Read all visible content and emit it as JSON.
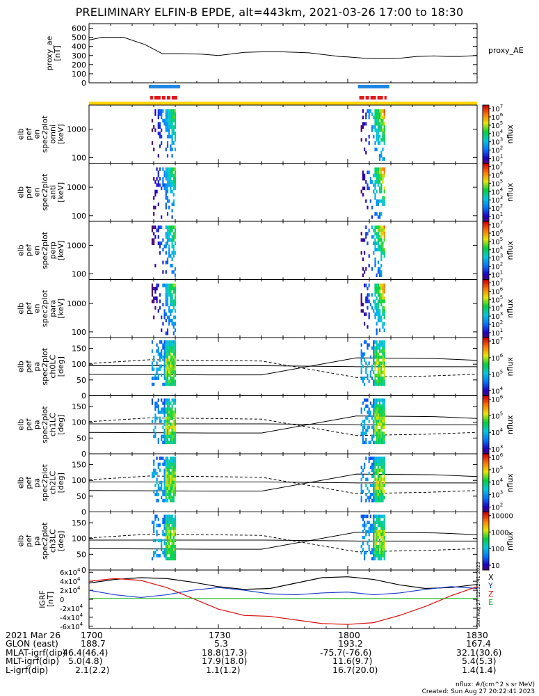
{
  "title": "PRELIMINARY ELFIN-B EPDE, alt=443km, 2021-03-26 17:00 to 18:30",
  "colors": {
    "blue_bar": "#1e88e5",
    "red_bar": "#e0181b",
    "yellow_bar": "#ffd400",
    "igrf_x": "#000000",
    "igrf_y": "#1a3ec8",
    "igrf_z": "#d81010",
    "igrf_e": "#22bb22"
  },
  "chart_data": [
    {
      "type": "line",
      "panel": "proxy_ae",
      "ylabel": [
        "proxy_ae",
        "[nT]"
      ],
      "legend": "proxy_AE",
      "ylim": [
        0,
        650
      ],
      "yticks": [
        "0",
        "100",
        "200",
        "300",
        "400",
        "500",
        "600"
      ],
      "x_minutes": [
        0,
        3,
        8,
        13,
        17,
        21,
        26,
        30,
        36,
        40,
        45,
        51,
        58,
        60,
        64,
        68,
        72,
        76,
        80,
        83,
        86,
        90
      ],
      "values": [
        470,
        500,
        500,
        420,
        320,
        320,
        315,
        300,
        335,
        340,
        340,
        330,
        290,
        285,
        270,
        265,
        270,
        290,
        295,
        290,
        290,
        300
      ]
    },
    {
      "type": "heatmap",
      "panels": [
        {
          "id": "omni",
          "ylabel": [
            "elb",
            "pef",
            "en",
            "spec2plot",
            "omni",
            "[keV]"
          ],
          "yticks": [
            "100",
            "1000"
          ]
        },
        {
          "id": "anti",
          "ylabel": [
            "elb",
            "pef",
            "en",
            "spec2plot",
            "anti",
            "[keV]"
          ],
          "yticks": [
            "100",
            "1000"
          ]
        },
        {
          "id": "perp",
          "ylabel": [
            "elb",
            "pef",
            "en",
            "spec2plot",
            "perp",
            "[keV]"
          ],
          "yticks": [
            "100",
            "1000"
          ]
        },
        {
          "id": "para",
          "ylabel": [
            "elb",
            "pef",
            "en",
            "spec2plot",
            "para",
            "[keV]"
          ],
          "yticks": [
            "100",
            "1000"
          ]
        },
        {
          "id": "ch0LC",
          "ylabel": [
            "elb",
            "pef",
            "pa",
            "spec2plot",
            "ch0LC",
            "[deg]"
          ],
          "yticks": [
            "0",
            "50",
            "100",
            "150"
          ]
        },
        {
          "id": "ch1LC",
          "ylabel": [
            "elb",
            "pef",
            "pa",
            "spec2plot",
            "ch1LC",
            "[deg]"
          ],
          "yticks": [
            "0",
            "50",
            "100",
            "150"
          ]
        },
        {
          "id": "ch2LC",
          "ylabel": [
            "elb",
            "pef",
            "pa",
            "spec2plot",
            "ch2LC",
            "[deg]"
          ],
          "yticks": [
            "0",
            "50",
            "100",
            "150"
          ]
        },
        {
          "id": "ch3LC",
          "ylabel": [
            "elb",
            "pef",
            "pa",
            "spec2plot",
            "ch3LC",
            "[deg]"
          ],
          "yticks": [
            "0",
            "50",
            "100",
            "150"
          ]
        }
      ],
      "colorbars": [
        {
          "labels": [
            "10^7",
            "10^6",
            "10^5",
            "10^4",
            "10^3",
            "10^2",
            "10^1"
          ],
          "unit": "nflux"
        },
        {
          "labels": [
            "10^7",
            "10^6",
            "10^5",
            "10^4",
            "10^3",
            "10^2",
            "10^1"
          ],
          "unit": "nflux"
        },
        {
          "labels": [
            "10^7",
            "10^6",
            "10^5",
            "10^4",
            "10^3",
            "10^2",
            "10^1"
          ],
          "unit": "nflux"
        },
        {
          "labels": [
            "10^7",
            "10^6",
            "10^5",
            "10^4",
            "10^3",
            "10^2",
            "10^1"
          ],
          "unit": "nflux"
        },
        {
          "labels": [
            "10^7",
            "10^6",
            "10^5",
            "10^4"
          ],
          "unit": "nflux"
        },
        {
          "labels": [
            "10^6",
            "10^5",
            "10^4",
            "10^3"
          ],
          "unit": "nflux"
        },
        {
          "labels": [
            "10^6",
            "10^5",
            "10^4",
            "10^3",
            "10^2"
          ],
          "unit": "nflux"
        },
        {
          "labels": [
            "10000",
            "1000",
            "100",
            "10"
          ],
          "unit": "nflux"
        }
      ],
      "science_intervals_minutes": [
        [
          14.5,
          20.5
        ],
        [
          63,
          69
        ]
      ]
    },
    {
      "type": "line",
      "panel": "igrf",
      "ylabel": [
        "IGRF",
        "[nT]"
      ],
      "ylim": [
        -65000,
        65000
      ],
      "yticks": [
        "-6x10^4",
        "-4x10^4",
        "-2x10^4",
        "0",
        "2x10^4",
        "4x10^4",
        "6x10^4"
      ],
      "legend": [
        "X",
        "Y",
        "Z",
        "E"
      ],
      "x_minutes": [
        0,
        6,
        12,
        18,
        24,
        30,
        36,
        42,
        48,
        54,
        60,
        66,
        72,
        78,
        84,
        90
      ],
      "series": [
        {
          "name": "X",
          "values": [
            36000,
            44000,
            48000,
            46000,
            38000,
            28000,
            22000,
            24000,
            36000,
            48000,
            50000,
            44000,
            32000,
            24000,
            26000,
            33000
          ]
        },
        {
          "name": "Y",
          "values": [
            20000,
            10000,
            4000,
            10000,
            20000,
            26000,
            20000,
            12000,
            10000,
            14000,
            16000,
            10000,
            14000,
            22000,
            28000,
            24000
          ]
        },
        {
          "name": "Z",
          "values": [
            40000,
            46000,
            42000,
            26000,
            2000,
            -22000,
            -36000,
            -38000,
            -46000,
            -54000,
            -56000,
            -52000,
            -36000,
            -16000,
            8000,
            28000
          ]
        },
        {
          "name": "E",
          "values": [
            2000,
            2000,
            2000,
            1500,
            1500,
            1500,
            1500,
            1500,
            1500,
            1500,
            1500,
            1500,
            1500,
            1500,
            1500,
            1500
          ]
        }
      ],
      "side_note": "Sun Aug 27 12:32:41 2023"
    }
  ],
  "x_axis": {
    "labels": [
      "2021 Mar 26",
      "GLON (east)",
      "MLAT-igrf(dip)",
      "MLT-igrf(dip)",
      "L-igrf(dip)"
    ],
    "ticks": [
      "1700",
      "1730",
      "1800",
      "1830"
    ],
    "glon": [
      "188.7",
      "5.3",
      "193.2",
      "167.4"
    ],
    "mlat": [
      "46.4(46.4)",
      "18.8(17.3)",
      "-75.7(-76.6)",
      "32.1(30.6)"
    ],
    "mlt": [
      "5.0(4.8)",
      "17.9(18.0)",
      "11.6(9.7)",
      "5.4(5.3)"
    ],
    "lshell": [
      "2.1(2.2)",
      "1.1(1.2)",
      "16.7(20.0)",
      "1.4(1.4)"
    ]
  },
  "footer": {
    "units": "nflux: #/(cm^2 s sr MeV)",
    "created": "Created: Sun Aug 27 20:22:41 2023"
  }
}
